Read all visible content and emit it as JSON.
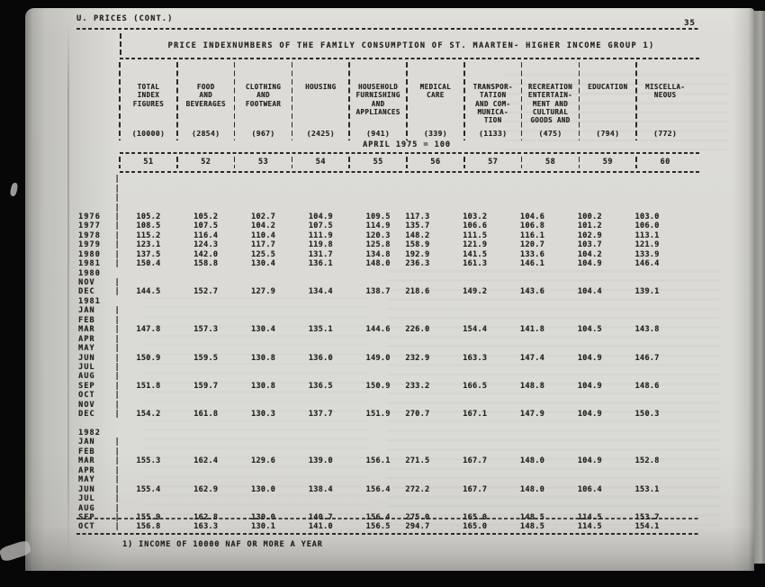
{
  "page": {
    "header_left": "U. PRICES (CONT.)",
    "page_number": "35",
    "title": "PRICE INDEXNUMBERS OF THE FAMILY CONSUMPTION OF ST. MAARTEN- HIGHER INCOME GROUP 1)",
    "base_note": "APRIL 1975 = 100",
    "footnote": "1) INCOME OF 10000 NAF OR MORE A YEAR"
  },
  "table": {
    "columns": [
      {
        "number": "51",
        "lines": [
          "TOTAL",
          "INDEX",
          "FIGURES"
        ],
        "weight": "(10000)"
      },
      {
        "number": "52",
        "lines": [
          "FOOD",
          "AND",
          "BEVERAGES"
        ],
        "weight": "(2854)"
      },
      {
        "number": "53",
        "lines": [
          "CLOTHING",
          "AND",
          "FOOTWEAR"
        ],
        "weight": "(967)"
      },
      {
        "number": "54",
        "lines": [
          "HOUSING"
        ],
        "weight": "(2425)"
      },
      {
        "number": "55",
        "lines": [
          "HOUSEHOLD",
          "FURNISHING",
          "AND",
          "APPLIANCES"
        ],
        "weight": "(941)"
      },
      {
        "number": "56",
        "lines": [
          "MEDICAL",
          "CARE"
        ],
        "weight": "(339)"
      },
      {
        "number": "57",
        "lines": [
          "TRANSPOR-",
          "TATION",
          "AND COM-",
          "MUNICA-",
          "TION"
        ],
        "weight": "(1133)"
      },
      {
        "number": "58",
        "lines": [
          "RECREATION",
          "ENTERTAIN-",
          "MENT AND",
          "CULTURAL",
          "GOODS AND"
        ],
        "weight": "(475)"
      },
      {
        "number": "59",
        "lines": [
          "EDUCATION"
        ],
        "weight": "(794)"
      },
      {
        "number": "60",
        "lines": [
          "MISCELLA-",
          "NEOUS"
        ],
        "weight": "(772)"
      }
    ],
    "rows": [
      {
        "type": "blank",
        "pipe": true
      },
      {
        "type": "blank",
        "pipe": true
      },
      {
        "type": "blank",
        "pipe": true
      },
      {
        "type": "blank",
        "pipe": true
      },
      {
        "type": "data",
        "pipe": true,
        "label": "1976",
        "values": [
          "105.2",
          "105.2",
          "102.7",
          "104.9",
          "109.5",
          "117.3",
          "103.2",
          "104.6",
          "100.2",
          "103.0"
        ]
      },
      {
        "type": "data",
        "pipe": true,
        "label": "1977",
        "values": [
          "108.5",
          "107.5",
          "104.2",
          "107.5",
          "114.9",
          "135.7",
          "106.6",
          "106.8",
          "101.2",
          "106.0"
        ]
      },
      {
        "type": "data",
        "pipe": true,
        "label": "1978",
        "values": [
          "115.2",
          "116.4",
          "110.4",
          "111.9",
          "120.3",
          "148.2",
          "111.5",
          "116.1",
          "102.9",
          "113.1"
        ]
      },
      {
        "type": "data",
        "pipe": true,
        "label": "1979",
        "values": [
          "123.1",
          "124.3",
          "117.7",
          "119.8",
          "125.8",
          "158.9",
          "121.9",
          "120.7",
          "103.7",
          "121.9"
        ]
      },
      {
        "type": "data",
        "pipe": true,
        "label": "1980",
        "values": [
          "137.5",
          "142.0",
          "125.5",
          "131.7",
          "134.8",
          "192.9",
          "141.5",
          "133.6",
          "104.2",
          "133.9"
        ]
      },
      {
        "type": "data",
        "pipe": true,
        "label": "1981",
        "values": [
          "150.4",
          "158.8",
          "130.4",
          "136.1",
          "148.0",
          "236.3",
          "161.3",
          "146.1",
          "104.9",
          "146.4"
        ]
      },
      {
        "type": "year",
        "pipe": false,
        "label": "1980",
        "values": []
      },
      {
        "type": "data",
        "pipe": true,
        "label": "NOV",
        "values": []
      },
      {
        "type": "data",
        "pipe": true,
        "label": "DEC",
        "values": [
          "144.5",
          "152.7",
          "127.9",
          "134.4",
          "138.7",
          "218.6",
          "149.2",
          "143.6",
          "104.4",
          "139.1"
        ]
      },
      {
        "type": "year",
        "pipe": false,
        "label": "1981",
        "values": []
      },
      {
        "type": "data",
        "pipe": true,
        "label": "JAN",
        "values": []
      },
      {
        "type": "data",
        "pipe": true,
        "label": "FEB",
        "values": []
      },
      {
        "type": "data",
        "pipe": true,
        "label": "MAR",
        "values": [
          "147.8",
          "157.3",
          "130.4",
          "135.1",
          "144.6",
          "226.0",
          "154.4",
          "141.8",
          "104.5",
          "143.8"
        ]
      },
      {
        "type": "data",
        "pipe": true,
        "label": "APR",
        "values": []
      },
      {
        "type": "data",
        "pipe": true,
        "label": "MAY",
        "values": []
      },
      {
        "type": "data",
        "pipe": true,
        "label": "JUN",
        "values": [
          "150.9",
          "159.5",
          "130.8",
          "136.0",
          "149.0",
          "232.9",
          "163.3",
          "147.4",
          "104.9",
          "146.7"
        ]
      },
      {
        "type": "data",
        "pipe": true,
        "label": "JUL",
        "values": []
      },
      {
        "type": "data",
        "pipe": true,
        "label": "AUG",
        "values": []
      },
      {
        "type": "data",
        "pipe": true,
        "label": "SEP",
        "values": [
          "151.8",
          "159.7",
          "130.8",
          "136.5",
          "150.9",
          "233.2",
          "166.5",
          "148.8",
          "104.9",
          "148.6"
        ]
      },
      {
        "type": "data",
        "pipe": true,
        "label": "OCT",
        "values": []
      },
      {
        "type": "data",
        "pipe": true,
        "label": "NOV",
        "values": []
      },
      {
        "type": "data",
        "pipe": true,
        "label": "DEC",
        "values": [
          "154.2",
          "161.8",
          "130.3",
          "137.7",
          "151.9",
          "270.7",
          "167.1",
          "147.9",
          "104.9",
          "150.3"
        ]
      },
      {
        "type": "blank",
        "pipe": false
      },
      {
        "type": "year",
        "pipe": false,
        "label": "1982",
        "values": []
      },
      {
        "type": "data",
        "pipe": true,
        "label": "JAN",
        "values": []
      },
      {
        "type": "data",
        "pipe": true,
        "label": "FEB",
        "values": []
      },
      {
        "type": "data",
        "pipe": true,
        "label": "MAR",
        "values": [
          "155.3",
          "162.4",
          "129.6",
          "139.0",
          "156.1",
          "271.5",
          "167.7",
          "148.0",
          "104.9",
          "152.8"
        ]
      },
      {
        "type": "data",
        "pipe": true,
        "label": "APR",
        "values": []
      },
      {
        "type": "data",
        "pipe": true,
        "label": "MAY",
        "values": []
      },
      {
        "type": "data",
        "pipe": true,
        "label": "JUN",
        "values": [
          "155.4",
          "162.9",
          "130.0",
          "138.4",
          "156.4",
          "272.2",
          "167.7",
          "148.0",
          "106.4",
          "153.1"
        ]
      },
      {
        "type": "data",
        "pipe": true,
        "label": "JUL",
        "values": []
      },
      {
        "type": "data",
        "pipe": true,
        "label": "AUG",
        "values": []
      },
      {
        "type": "data",
        "pipe": true,
        "label": "SEP",
        "values": [
          "155.9",
          "162.8",
          "130.0",
          "140.7",
          "156.4",
          "275.0",
          "165.0",
          "148.5",
          "114.5",
          "153.7"
        ]
      },
      {
        "type": "data",
        "pipe": true,
        "label": "OCT",
        "values": [
          "156.8",
          "163.3",
          "130.1",
          "141.0",
          "156.5",
          "294.7",
          "165.0",
          "148.5",
          "114.5",
          "154.1"
        ]
      }
    ]
  }
}
